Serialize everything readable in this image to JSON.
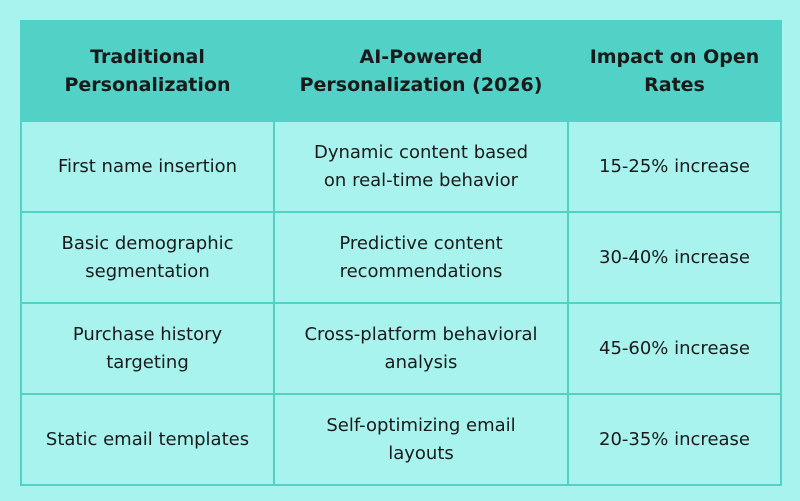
{
  "table": {
    "header": [
      [
        "Traditional",
        "Personalization"
      ],
      [
        "AI-Powered",
        "Personalization (2026)"
      ],
      [
        "Impact on Open",
        "Rates"
      ]
    ],
    "rows": [
      [
        [
          "First name insertion"
        ],
        [
          "Dynamic content based",
          "on real-time behavior"
        ],
        [
          "15-25% increase"
        ]
      ],
      [
        [
          "Basic demographic",
          "segmentation"
        ],
        [
          "Predictive content",
          "recommendations"
        ],
        [
          "30-40% increase"
        ]
      ],
      [
        [
          "Purchase history",
          "targeting"
        ],
        [
          "Cross-platform behavioral",
          "analysis"
        ],
        [
          "45-60% increase"
        ]
      ],
      [
        [
          "Static email templates"
        ],
        [
          "Self-optimizing email",
          "layouts"
        ],
        [
          "20-35% increase"
        ]
      ]
    ]
  }
}
